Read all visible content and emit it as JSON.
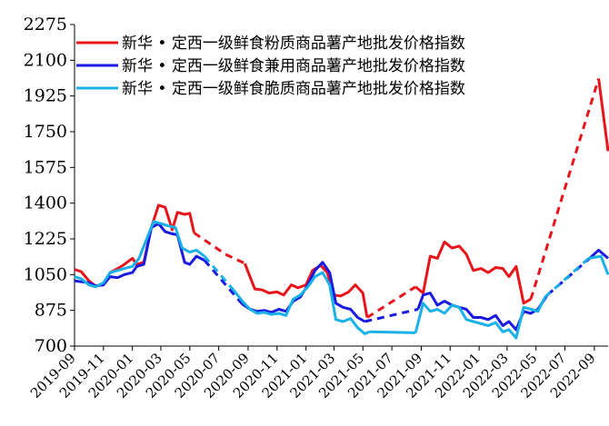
{
  "chart_data": {
    "type": "line",
    "title": "",
    "xlabel": "",
    "ylabel": "",
    "ylim": [
      700,
      2275
    ],
    "y_ticks": [
      700,
      875,
      1050,
      1225,
      1400,
      1575,
      1750,
      1925,
      2100,
      2275
    ],
    "x_ticks": [
      "2019-09",
      "2019-11",
      "2020-01",
      "2020-03",
      "2020-05",
      "2020-07",
      "2020-09",
      "2020-11",
      "2021-01",
      "2021-03",
      "2021-05",
      "2021-07",
      "2021-09",
      "2021-11",
      "2022-01",
      "2022-03",
      "2022-05",
      "2022-07",
      "2022-09"
    ],
    "x_range": [
      "2019-09-01",
      "2022-09-30"
    ],
    "grid": false,
    "legend_position": "top",
    "series": [
      {
        "name": "新华 • 定西一级鲜食粉质商品薯产地批发价格指数",
        "color": "#e8141b",
        "segments": [
          {
            "style": "solid",
            "points": [
              [
                "2019-09-01",
                1075
              ],
              [
                "2019-09-15",
                1065
              ],
              [
                "2019-10-01",
                1020
              ],
              [
                "2019-10-15",
                995
              ],
              [
                "2019-11-01",
                1000
              ],
              [
                "2019-11-15",
                1060
              ],
              [
                "2019-12-01",
                1080
              ],
              [
                "2019-12-15",
                1100
              ],
              [
                "2020-01-01",
                1130
              ],
              [
                "2020-01-10",
                1100
              ],
              [
                "2020-01-25",
                1110
              ],
              [
                "2020-02-10",
                1280
              ],
              [
                "2020-02-25",
                1390
              ],
              [
                "2020-03-10",
                1380
              ],
              [
                "2020-03-25",
                1270
              ],
              [
                "2020-04-05",
                1355
              ],
              [
                "2020-04-20",
                1345
              ],
              [
                "2020-05-01",
                1350
              ],
              [
                "2020-05-10",
                1255
              ]
            ]
          },
          {
            "style": "dashed",
            "points": [
              [
                "2020-05-10",
                1255
              ],
              [
                "2020-07-15",
                1150
              ],
              [
                "2020-08-25",
                1105
              ]
            ]
          },
          {
            "style": "solid",
            "points": [
              [
                "2020-08-25",
                1105
              ],
              [
                "2020-09-15",
                980
              ],
              [
                "2020-10-01",
                975
              ],
              [
                "2020-10-15",
                960
              ],
              [
                "2020-11-01",
                965
              ],
              [
                "2020-11-15",
                950
              ],
              [
                "2020-12-01",
                1000
              ],
              [
                "2020-12-15",
                985
              ],
              [
                "2021-01-01",
                1000
              ],
              [
                "2021-01-15",
                1070
              ],
              [
                "2021-02-01",
                1095
              ],
              [
                "2021-02-15",
                1060
              ],
              [
                "2021-03-01",
                950
              ],
              [
                "2021-03-15",
                945
              ],
              [
                "2021-04-01",
                965
              ],
              [
                "2021-04-15",
                1000
              ],
              [
                "2021-05-01",
                960
              ],
              [
                "2021-05-10",
                840
              ]
            ]
          },
          {
            "style": "dashed",
            "points": [
              [
                "2021-05-10",
                840
              ],
              [
                "2021-08-20",
                990
              ]
            ]
          },
          {
            "style": "solid",
            "points": [
              [
                "2021-08-20",
                990
              ],
              [
                "2021-09-05",
                960
              ],
              [
                "2021-09-20",
                1140
              ],
              [
                "2021-10-05",
                1130
              ],
              [
                "2021-10-20",
                1210
              ],
              [
                "2021-11-05",
                1180
              ],
              [
                "2021-11-20",
                1190
              ],
              [
                "2021-12-05",
                1150
              ],
              [
                "2021-12-20",
                1070
              ],
              [
                "2022-01-05",
                1080
              ],
              [
                "2022-01-20",
                1060
              ],
              [
                "2022-02-05",
                1085
              ],
              [
                "2022-02-20",
                1080
              ],
              [
                "2022-03-05",
                1040
              ],
              [
                "2022-03-20",
                1090
              ],
              [
                "2022-04-05",
                910
              ],
              [
                "2022-04-20",
                930
              ]
            ]
          },
          {
            "style": "dashed",
            "points": [
              [
                "2022-04-20",
                930
              ],
              [
                "2022-09-10",
                2010
              ]
            ]
          },
          {
            "style": "solid",
            "points": [
              [
                "2022-09-10",
                2010
              ],
              [
                "2022-09-30",
                1655
              ]
            ]
          }
        ]
      },
      {
        "name": "新华 • 定西一级鲜食兼用商品薯产地批发价格指数",
        "color": "#1a1ae0",
        "segments": [
          {
            "style": "solid",
            "points": [
              [
                "2019-09-01",
                1020
              ],
              [
                "2019-09-15",
                1015
              ],
              [
                "2019-10-01",
                1010
              ],
              [
                "2019-10-15",
                995
              ],
              [
                "2019-11-01",
                1000
              ],
              [
                "2019-11-15",
                1040
              ],
              [
                "2019-12-01",
                1035
              ],
              [
                "2019-12-15",
                1050
              ],
              [
                "2020-01-01",
                1060
              ],
              [
                "2020-01-10",
                1090
              ],
              [
                "2020-01-25",
                1100
              ],
              [
                "2020-02-10",
                1280
              ],
              [
                "2020-02-25",
                1300
              ],
              [
                "2020-03-10",
                1260
              ],
              [
                "2020-03-25",
                1250
              ],
              [
                "2020-04-05",
                1245
              ],
              [
                "2020-04-20",
                1110
              ],
              [
                "2020-05-01",
                1100
              ],
              [
                "2020-05-15",
                1140
              ],
              [
                "2020-06-01",
                1120
              ]
            ]
          },
          {
            "style": "dashed",
            "points": [
              [
                "2020-06-01",
                1120
              ],
              [
                "2020-08-20",
                905
              ]
            ]
          },
          {
            "style": "solid",
            "points": [
              [
                "2020-08-20",
                905
              ],
              [
                "2020-09-05",
                880
              ],
              [
                "2020-09-20",
                870
              ],
              [
                "2020-10-05",
                875
              ],
              [
                "2020-10-20",
                865
              ],
              [
                "2020-11-05",
                880
              ],
              [
                "2020-11-20",
                870
              ],
              [
                "2020-12-05",
                920
              ],
              [
                "2020-12-20",
                940
              ],
              [
                "2021-01-05",
                1000
              ],
              [
                "2021-01-20",
                1070
              ],
              [
                "2021-02-05",
                1110
              ],
              [
                "2021-02-20",
                1060
              ],
              [
                "2021-03-05",
                910
              ],
              [
                "2021-03-20",
                890
              ],
              [
                "2021-04-05",
                880
              ],
              [
                "2021-04-20",
                840
              ],
              [
                "2021-05-05",
                820
              ]
            ]
          },
          {
            "style": "dashed",
            "points": [
              [
                "2021-05-05",
                820
              ],
              [
                "2021-08-25",
                880
              ]
            ]
          },
          {
            "style": "solid",
            "points": [
              [
                "2021-08-25",
                880
              ],
              [
                "2021-09-05",
                950
              ],
              [
                "2021-09-20",
                960
              ],
              [
                "2021-10-05",
                900
              ],
              [
                "2021-10-20",
                920
              ],
              [
                "2021-11-05",
                900
              ],
              [
                "2021-11-20",
                890
              ],
              [
                "2021-12-05",
                880
              ],
              [
                "2021-12-20",
                840
              ],
              [
                "2022-01-05",
                840
              ],
              [
                "2022-01-20",
                830
              ],
              [
                "2022-02-05",
                850
              ],
              [
                "2022-02-20",
                800
              ],
              [
                "2022-03-05",
                820
              ],
              [
                "2022-03-20",
                780
              ],
              [
                "2022-04-05",
                870
              ],
              [
                "2022-04-20",
                860
              ],
              [
                "2022-05-05",
                880
              ],
              [
                "2022-05-25",
                950
              ]
            ]
          },
          {
            "style": "dashed",
            "points": [
              [
                "2022-05-25",
                950
              ],
              [
                "2022-08-15",
                1115
              ]
            ]
          },
          {
            "style": "solid",
            "points": [
              [
                "2022-08-15",
                1115
              ],
              [
                "2022-09-10",
                1170
              ],
              [
                "2022-09-30",
                1130
              ]
            ]
          }
        ]
      },
      {
        "name": "新华 • 定西一级鲜食脆质商品薯产地批发价格指数",
        "color": "#1ab0e8",
        "segments": [
          {
            "style": "solid",
            "points": [
              [
                "2019-09-01",
                1040
              ],
              [
                "2019-09-15",
                1030
              ],
              [
                "2019-10-01",
                1000
              ],
              [
                "2019-10-15",
                990
              ],
              [
                "2019-11-01",
                1010
              ],
              [
                "2019-11-15",
                1060
              ],
              [
                "2019-12-01",
                1070
              ],
              [
                "2019-12-15",
                1080
              ],
              [
                "2020-01-01",
                1090
              ],
              [
                "2020-01-15",
                1130
              ],
              [
                "2020-02-01",
                1230
              ],
              [
                "2020-02-15",
                1310
              ],
              [
                "2020-03-01",
                1300
              ],
              [
                "2020-03-15",
                1290
              ],
              [
                "2020-04-01",
                1280
              ],
              [
                "2020-04-15",
                1180
              ],
              [
                "2020-05-01",
                1160
              ],
              [
                "2020-05-15",
                1170
              ],
              [
                "2020-06-01",
                1140
              ]
            ]
          },
          {
            "style": "dashed",
            "points": [
              [
                "2020-06-01",
                1140
              ],
              [
                "2020-08-01",
                975
              ]
            ]
          },
          {
            "style": "solid",
            "points": [
              [
                "2020-08-01",
                975
              ],
              [
                "2020-08-20",
                920
              ],
              [
                "2020-09-05",
                880
              ],
              [
                "2020-09-20",
                860
              ],
              [
                "2020-10-05",
                865
              ],
              [
                "2020-10-20",
                855
              ],
              [
                "2020-11-05",
                860
              ],
              [
                "2020-11-20",
                850
              ],
              [
                "2020-12-05",
                930
              ],
              [
                "2020-12-20",
                950
              ],
              [
                "2021-01-05",
                990
              ],
              [
                "2021-01-20",
                1040
              ],
              [
                "2021-02-05",
                1060
              ],
              [
                "2021-02-20",
                1000
              ],
              [
                "2021-03-05",
                830
              ],
              [
                "2021-03-20",
                820
              ],
              [
                "2021-04-05",
                835
              ],
              [
                "2021-04-20",
                790
              ],
              [
                "2021-05-05",
                760
              ],
              [
                "2021-05-15",
                770
              ]
            ]
          },
          {
            "style": "solid",
            "points": [
              [
                "2021-05-15",
                770
              ],
              [
                "2021-08-20",
                765
              ]
            ]
          },
          {
            "style": "solid",
            "points": [
              [
                "2021-08-20",
                765
              ],
              [
                "2021-09-05",
                910
              ],
              [
                "2021-09-20",
                870
              ],
              [
                "2021-10-05",
                880
              ],
              [
                "2021-10-20",
                860
              ],
              [
                "2021-11-05",
                900
              ],
              [
                "2021-11-20",
                890
              ],
              [
                "2021-12-05",
                830
              ],
              [
                "2021-12-20",
                820
              ],
              [
                "2022-01-05",
                810
              ],
              [
                "2022-01-20",
                800
              ],
              [
                "2022-02-05",
                815
              ],
              [
                "2022-02-20",
                770
              ],
              [
                "2022-03-05",
                780
              ],
              [
                "2022-03-20",
                740
              ],
              [
                "2022-04-05",
                890
              ],
              [
                "2022-04-20",
                880
              ],
              [
                "2022-05-05",
                870
              ],
              [
                "2022-05-20",
                940
              ]
            ]
          },
          {
            "style": "dashed",
            "points": [
              [
                "2022-05-20",
                940
              ],
              [
                "2022-08-20",
                1130
              ]
            ]
          },
          {
            "style": "solid",
            "points": [
              [
                "2022-08-20",
                1130
              ],
              [
                "2022-09-15",
                1140
              ],
              [
                "2022-09-30",
                1050
              ]
            ]
          }
        ]
      }
    ]
  }
}
